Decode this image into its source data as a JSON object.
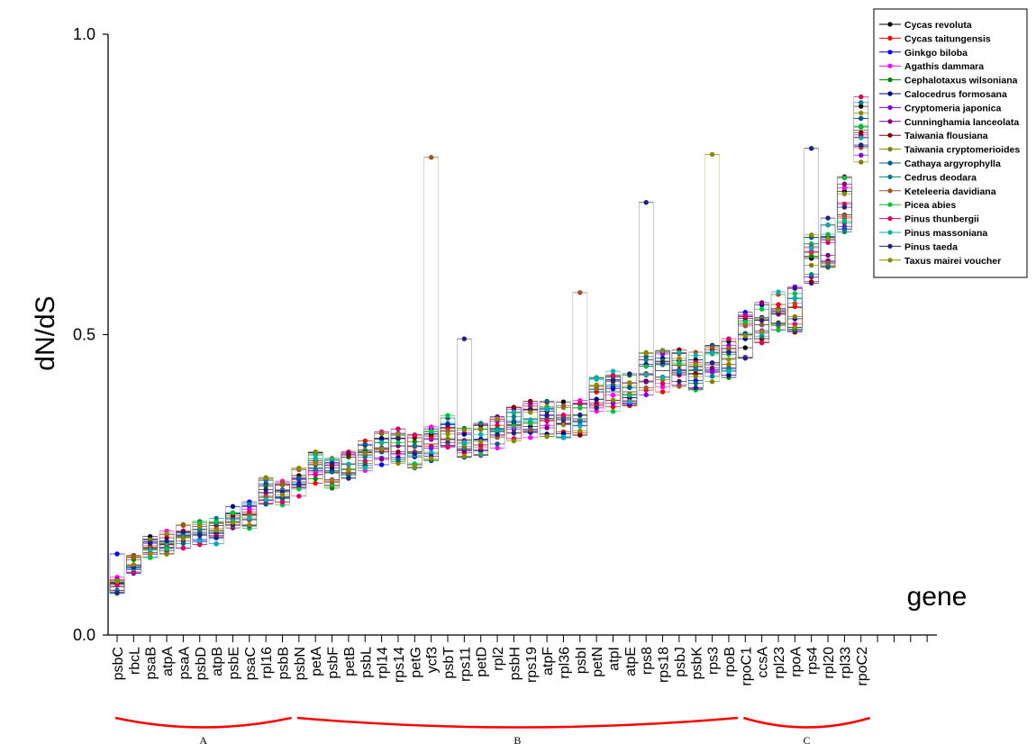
{
  "chart_data": {
    "type": "scatter",
    "xlabel": "gene",
    "ylabel": "dN/dS",
    "ylim": [
      0,
      1.0
    ],
    "y_ticks": [
      "0.0",
      "0.5",
      "1.0"
    ],
    "grid": false,
    "legend_position": "top-right",
    "genes": [
      "psbC",
      "rbcL",
      "psaB",
      "atpA",
      "psaA",
      "psbD",
      "atpB",
      "psbE",
      "psaC",
      "rpl16",
      "psbB",
      "psbN",
      "petA",
      "psbF",
      "petB",
      "psbL",
      "rpl14",
      "rps14",
      "petG",
      "ycf3",
      "psbT",
      "rps11",
      "petD",
      "rpl2",
      "psbH",
      "rps19",
      "atpF",
      "rpl36",
      "psbI",
      "petN",
      "atpI",
      "atpE",
      "rps8",
      "rps18",
      "psbJ",
      "psbK",
      "rps3",
      "rpoB",
      "rpoC1",
      "ccsA",
      "rpl23",
      "rpoA",
      "rps4",
      "rpl20",
      "rpl33",
      "rpoC2"
    ],
    "groups": [
      {
        "label": "A",
        "from": "psbC",
        "to": "psbB"
      },
      {
        "label": "B",
        "from": "psbN",
        "to": "rpoB"
      },
      {
        "label": "C",
        "from": "rpoC1",
        "to": "rpoC2"
      }
    ],
    "gene_means": [
      0.08,
      0.117,
      0.145,
      0.155,
      0.165,
      0.168,
      0.173,
      0.195,
      0.2,
      0.238,
      0.24,
      0.255,
      0.278,
      0.27,
      0.285,
      0.3,
      0.31,
      0.315,
      0.305,
      0.318,
      0.34,
      0.325,
      0.325,
      0.34,
      0.35,
      0.36,
      0.36,
      0.36,
      0.36,
      0.405,
      0.405,
      0.405,
      0.435,
      0.44,
      0.44,
      0.44,
      0.45,
      0.46,
      0.5,
      0.525,
      0.535,
      0.545,
      0.63,
      0.66,
      0.72,
      0.84
    ],
    "series": [
      {
        "name": "Cycas revoluta",
        "color": "#000000"
      },
      {
        "name": "Cycas taitungensis",
        "color": "#ff0000"
      },
      {
        "name": "Ginkgo biloba",
        "color": "#0000ff"
      },
      {
        "name": "Agathis dammara",
        "color": "#ff00ff"
      },
      {
        "name": "Cephalotaxus wilsoniana",
        "color": "#008000"
      },
      {
        "name": "Calocedrus formosana",
        "color": "#000080"
      },
      {
        "name": "Cryptomeria japonica",
        "color": "#8000ff"
      },
      {
        "name": "Cunninghamia lanceolata",
        "color": "#800080"
      },
      {
        "name": "Taiwania flousiana",
        "color": "#800000"
      },
      {
        "name": "Taiwania cryptomerioides",
        "color": "#808000"
      },
      {
        "name": "Cathaya argyrophylla",
        "color": "#005f80"
      },
      {
        "name": "Cedrus deodara",
        "color": "#008080"
      },
      {
        "name": "Keteleeria davidiana",
        "color": "#a0522d"
      },
      {
        "name": "Picea abies",
        "color": "#00c040"
      },
      {
        "name": "Pinus thunbergii",
        "color": "#e00060"
      },
      {
        "name": "Pinus massoniana",
        "color": "#00b0b0"
      },
      {
        "name": "Pinus taeda",
        "color": "#202080"
      },
      {
        "name": "Taxus mairei voucher",
        "color": "#8a8a00"
      }
    ],
    "highlights": [
      {
        "gene": "psbC",
        "series": "Ginkgo biloba",
        "value": 0.135
      },
      {
        "gene": "ycf3",
        "series": "Keteleeria davidiana",
        "value": 0.795
      },
      {
        "gene": "rps11",
        "series": "Pinus taeda",
        "value": 0.493
      },
      {
        "gene": "psbI",
        "series": "Keteleeria davidiana",
        "value": 0.57
      },
      {
        "gene": "rps8",
        "series": "Pinus taeda",
        "value": 0.72
      },
      {
        "gene": "rps3",
        "series": "Taxus mairei voucher",
        "value": 0.8
      },
      {
        "gene": "rps4",
        "series": "Pinus taeda",
        "value": 0.81
      },
      {
        "gene": "rpoC2",
        "series": "Ginkgo biloba",
        "value": 0.86
      }
    ]
  }
}
